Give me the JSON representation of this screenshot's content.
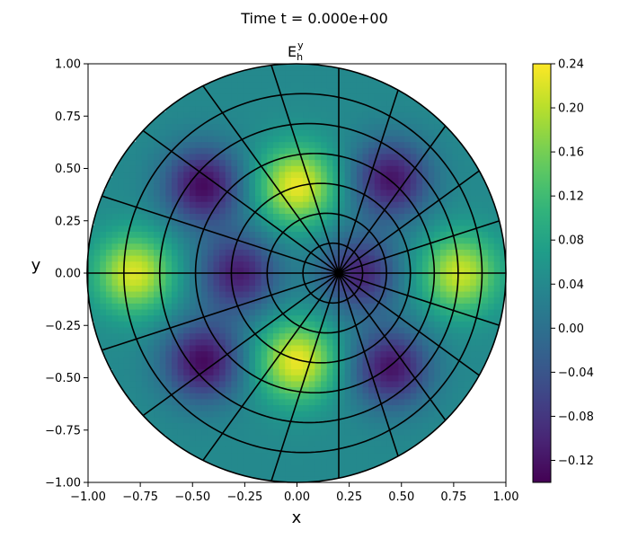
{
  "suptitle": "Time t =  0.000e+00",
  "chart_data": {
    "type": "heatmap",
    "title": "E_h^y",
    "title_parts": {
      "base": "E",
      "sub": "h",
      "sup": "y"
    },
    "xlabel": "x",
    "ylabel": "y",
    "xlim": [
      -1.0,
      1.0
    ],
    "ylim": [
      -1.0,
      1.0
    ],
    "x_ticks": [
      "−1.00",
      "−0.75",
      "−0.50",
      "−0.25",
      "0.00",
      "0.25",
      "0.50",
      "0.75",
      "1.00"
    ],
    "y_ticks": [
      "−1.00",
      "−0.75",
      "−0.50",
      "−0.25",
      "0.00",
      "0.25",
      "0.50",
      "0.75",
      "1.00"
    ],
    "x_tick_values": [
      -1.0,
      -0.75,
      -0.5,
      -0.25,
      0.0,
      0.25,
      0.5,
      0.75,
      1.0
    ],
    "y_tick_values": [
      -1.0,
      -0.75,
      -0.5,
      -0.25,
      0.0,
      0.25,
      0.5,
      0.75,
      1.0
    ],
    "colormap": "viridis",
    "colorbar": {
      "range": [
        -0.14,
        0.24
      ],
      "ticks": [
        "0.24",
        "0.20",
        "0.16",
        "0.12",
        "0.08",
        "0.04",
        "0.00",
        "−0.04",
        "−0.08",
        "−0.12"
      ],
      "tick_values": [
        0.24,
        0.2,
        0.16,
        0.12,
        0.08,
        0.04,
        0.0,
        -0.04,
        -0.08,
        -0.12
      ]
    },
    "domain": {
      "shape": "disk",
      "center": [
        0.0,
        0.0
      ],
      "radius": 1.0
    },
    "mesh": {
      "pole": [
        0.2,
        0.0
      ],
      "radial_lines": 20,
      "rings": 7
    },
    "field_features": {
      "maxima": [
        {
          "x": 0.0,
          "y": 0.42,
          "value": 0.23
        },
        {
          "x": 0.0,
          "y": -0.42,
          "value": 0.23
        },
        {
          "x": -0.78,
          "y": 0.0,
          "value": 0.22
        },
        {
          "x": 0.78,
          "y": 0.0,
          "value": 0.21
        }
      ],
      "minima": [
        {
          "x": -0.45,
          "y": 0.42,
          "value": -0.13
        },
        {
          "x": -0.45,
          "y": -0.42,
          "value": -0.13
        },
        {
          "x": 0.45,
          "y": 0.45,
          "value": -0.12
        },
        {
          "x": 0.45,
          "y": -0.45,
          "value": -0.12
        },
        {
          "x": -0.28,
          "y": 0.0,
          "value": -0.11
        },
        {
          "x": 0.3,
          "y": 0.0,
          "value": -0.1
        }
      ]
    }
  }
}
